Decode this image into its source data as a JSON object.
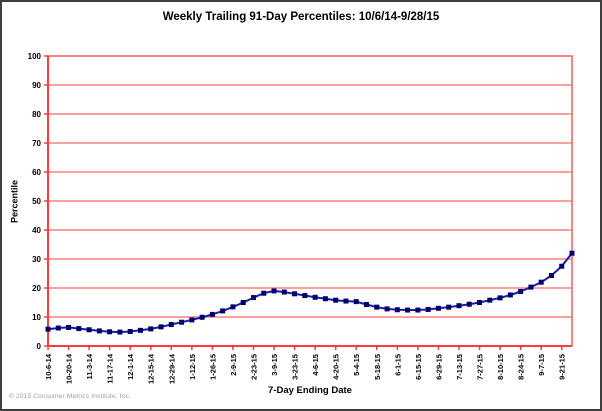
{
  "footer": "© 2015 Consumer Metrics Institute, Inc.",
  "chart_data": {
    "type": "line",
    "title": "Weekly Trailing 91-Day Percentiles: 10/6/14-9/28/15",
    "xlabel": "7-Day Ending Date",
    "ylabel": "Percentile",
    "ylim": [
      0,
      100
    ],
    "y_ticks": [
      0,
      10,
      20,
      30,
      40,
      50,
      60,
      70,
      80,
      90,
      100
    ],
    "grid": true,
    "legend": "none",
    "x": [
      "10-6-14",
      "10-13-14",
      "10-20-14",
      "10-27-14",
      "11-3-14",
      "11-10-14",
      "11-17-14",
      "11-24-14",
      "12-1-14",
      "12-8-14",
      "12-15-14",
      "12-22-14",
      "12-29-14",
      "1-5-15",
      "1-12-15",
      "1-19-15",
      "1-26-15",
      "2-2-15",
      "2-9-15",
      "2-16-15",
      "2-23-15",
      "3-2-15",
      "3-9-15",
      "3-16-15",
      "3-23-15",
      "3-30-15",
      "4-6-15",
      "4-13-15",
      "4-20-15",
      "4-27-15",
      "5-4-15",
      "5-11-15",
      "5-18-15",
      "5-25-15",
      "6-1-15",
      "6-8-15",
      "6-15-15",
      "6-22-15",
      "6-29-15",
      "7-6-15",
      "7-13-15",
      "7-20-15",
      "7-27-15",
      "8-3-15",
      "8-10-15",
      "8-17-15",
      "8-24-15",
      "8-31-15",
      "9-7-15",
      "9-14-15",
      "9-21-15",
      "9-28-15"
    ],
    "x_tick_labels": [
      "10-6-14",
      "10-20-14",
      "11-3-14",
      "11-17-14",
      "12-1-14",
      "12-15-14",
      "12-29-14",
      "1-12-15",
      "1-26-15",
      "2-9-15",
      "2-23-15",
      "3-9-15",
      "3-23-15",
      "4-6-15",
      "4-20-15",
      "5-4-15",
      "5-18-15",
      "6-1-15",
      "6-15-15",
      "6-29-15",
      "7-13-15",
      "7-27-15",
      "8-10-15",
      "8-24-15",
      "9-7-15",
      "9-21-15"
    ],
    "values": [
      5.8,
      6.2,
      6.4,
      6.0,
      5.6,
      5.2,
      4.9,
      4.8,
      5.0,
      5.4,
      5.9,
      6.6,
      7.4,
      8.2,
      9.0,
      9.9,
      10.9,
      12.1,
      13.5,
      15.0,
      16.7,
      18.2,
      19.0,
      18.6,
      18.0,
      17.4,
      16.8,
      16.3,
      15.8,
      15.5,
      15.3,
      14.3,
      13.4,
      12.8,
      12.5,
      12.4,
      12.4,
      12.6,
      13.0,
      13.4,
      13.9,
      14.4,
      15.0,
      15.8,
      16.6,
      17.6,
      18.8,
      20.3,
      22.0,
      24.3,
      27.5,
      32.0
    ],
    "colors": {
      "line": "#1c1c9e",
      "marker": "#00006e",
      "gridline": "#ff9f9f",
      "plot_frame": "#ff5a5a",
      "axis": "#ff3b3b",
      "outer_border": "#3f3f3f",
      "footer_text": "#9b9b9b"
    },
    "marker": "square"
  }
}
